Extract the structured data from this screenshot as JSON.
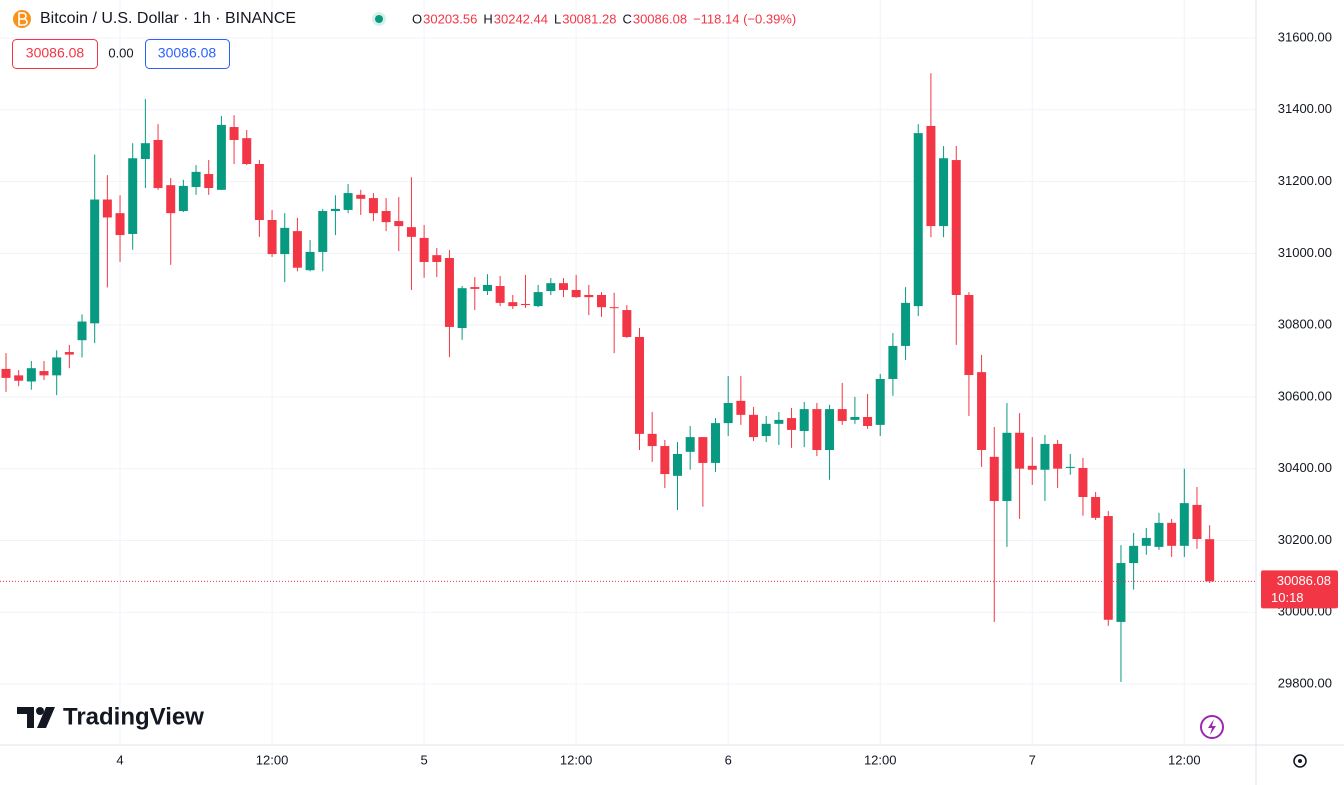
{
  "chart_data": {
    "type": "candlestick",
    "title": "Bitcoin / U.S. Dollar · 1h · BINANCE",
    "ohlc_labels": [
      "O",
      "H",
      "L",
      "C"
    ],
    "change": "−118.14 (−0.39%)",
    "spread": "0.00",
    "countdown": "10:18",
    "logo": "TradingView",
    "up_color": "#089981",
    "down_color": "#f23645",
    "grid": true,
    "categories": [
      null,
      null,
      null,
      null,
      null,
      null,
      null,
      null,
      null,
      "4",
      null,
      null,
      null,
      null,
      null,
      null,
      null,
      null,
      null,
      null,
      null,
      "12:00",
      null,
      null,
      null,
      null,
      null,
      null,
      null,
      null,
      null,
      null,
      null,
      "5",
      null,
      null,
      null,
      null,
      null,
      null,
      null,
      null,
      null,
      null,
      null,
      "12:00",
      null,
      null,
      null,
      null,
      null,
      null,
      null,
      null,
      null,
      null,
      null,
      "6",
      null,
      null,
      null,
      null,
      null,
      null,
      null,
      null,
      null,
      null,
      null,
      "12:00",
      null,
      null,
      null,
      null,
      null,
      null,
      null,
      null,
      null,
      null,
      null,
      "7",
      null,
      null,
      null,
      null,
      null,
      null,
      null,
      null,
      null,
      null,
      null,
      "12:00",
      null,
      null
    ],
    "open": [
      30678,
      30660,
      30643,
      30672,
      30660,
      30725,
      30758,
      30805,
      31150,
      31112,
      31054,
      31263,
      31316,
      31190,
      31118,
      31185,
      31221,
      31177,
      31352,
      31321,
      31249,
      31093,
      30998,
      31062,
      30953,
      31004,
      31118,
      31121,
      31163,
      31154,
      31118,
      31090,
      31073,
      31043,
      30995,
      30987,
      30792,
      30906,
      30895,
      30909,
      30864,
      30859,
      30853,
      30895,
      30917,
      30898,
      30884,
      30884,
      30850,
      30842,
      30767,
      30497,
      30463,
      30380,
      30447,
      30488,
      30416,
      30527,
      30589,
      30550,
      30491,
      30525,
      30541,
      30505,
      30566,
      30452,
      30566,
      30536,
      30544,
      30522,
      30650,
      30742,
      30853,
      31355,
      31076,
      31260,
      30884,
      30669,
      30433,
      30310,
      30500,
      30408,
      30397,
      30469,
      30402,
      30402,
      30321,
      30268,
      29973,
      30137,
      30185,
      30182,
      30249,
      30185,
      30299,
      30203.56
    ],
    "high": [
      30722,
      30675,
      30700,
      30700,
      30730,
      30745,
      30830,
      31275,
      31218,
      31162,
      31307,
      31430,
      31360,
      31210,
      31205,
      31246,
      31260,
      31383,
      31385,
      31344,
      31260,
      31121,
      31112,
      31099,
      31037,
      31124,
      31162,
      31193,
      31177,
      31168,
      31154,
      31157,
      31212,
      31079,
      31015,
      31009,
      30909,
      30934,
      30942,
      30937,
      30884,
      30940,
      30912,
      30931,
      30931,
      30940,
      30912,
      30892,
      30890,
      30856,
      30792,
      30558,
      30480,
      30474,
      30519,
      30488,
      30541,
      30658,
      30658,
      30572,
      30547,
      30558,
      30569,
      30586,
      30583,
      30578,
      30639,
      30600,
      30608,
      30664,
      30778,
      30906,
      31360,
      31502,
      31299,
      31299,
      30892,
      30717,
      30516,
      30583,
      30555,
      30488,
      30494,
      30480,
      30441,
      30430,
      30335,
      30282,
      30187,
      30221,
      30235,
      30277,
      30260,
      30400,
      30349,
      30242.44
    ],
    "low": [
      30614,
      30630,
      30620,
      30647,
      30605,
      30680,
      30710,
      30750,
      30905,
      30976,
      31010,
      31182,
      31177,
      30968,
      31115,
      31163,
      31163,
      31177,
      31249,
      31246,
      31046,
      30990,
      30920,
      30950,
      30950,
      30950,
      31051,
      31112,
      31107,
      31090,
      31062,
      31006,
      30898,
      30932,
      30934,
      30711,
      30759,
      30842,
      30884,
      30853,
      30845,
      30848,
      30850,
      30884,
      30878,
      30876,
      30828,
      30823,
      30722,
      30764,
      30452,
      30419,
      30346,
      30285,
      30397,
      30294,
      30391,
      30491,
      30522,
      30477,
      30474,
      30466,
      30458,
      30460,
      30435,
      30369,
      30522,
      30525,
      30511,
      30491,
      30603,
      30703,
      30825,
      31045,
      31045,
      30745,
      30547,
      30405,
      29973,
      30182,
      30260,
      30355,
      30310,
      30346,
      30383,
      30269,
      30257,
      29962,
      29806,
      30063,
      30160,
      30174,
      30154,
      30154,
      30177,
      30081.28
    ],
    "close": [
      30653,
      30645,
      30680,
      30660,
      30710,
      30718,
      30810,
      31150,
      31100,
      31051,
      31265,
      31307,
      31182,
      31112,
      31188,
      31227,
      31182,
      31358,
      31316,
      31249,
      31093,
      30998,
      31071,
      30960,
      31004,
      31118,
      31124,
      31168,
      31152,
      31112,
      31087,
      31076,
      31046,
      30976,
      30976,
      30795,
      30903,
      30901,
      30912,
      30862,
      30853,
      30856,
      30892,
      30917,
      30898,
      30878,
      30878,
      30850,
      30848,
      30767,
      30497,
      30463,
      30385,
      30441,
      30488,
      30416,
      30527,
      30583,
      30550,
      30488,
      30525,
      30536,
      30508,
      30566,
      30452,
      30566,
      30533,
      30544,
      30519,
      30650,
      30742,
      30862,
      31335,
      31076,
      31265,
      30884,
      30661,
      30452,
      30310,
      30500,
      30400,
      30397,
      30469,
      30400,
      30405,
      30321,
      30263,
      29979,
      30137,
      30185,
      30207,
      30249,
      30185,
      30304,
      30204,
      30086.08
    ],
    "ylim": [
      29630,
      31706
    ],
    "yticks": [
      {
        "value": 29800,
        "label": "29800.00"
      },
      {
        "value": 30000,
        "label": "30000.00"
      },
      {
        "value": 30200,
        "label": "30200.00"
      },
      {
        "value": 30400,
        "label": "30400.00"
      },
      {
        "value": 30600,
        "label": "30600.00"
      },
      {
        "value": 30800,
        "label": "30800.00"
      },
      {
        "value": 31000,
        "label": "31000.00"
      },
      {
        "value": 31200,
        "label": "31200.00"
      },
      {
        "value": 31400,
        "label": "31400.00"
      },
      {
        "value": 31600,
        "label": "31600.00"
      }
    ]
  }
}
